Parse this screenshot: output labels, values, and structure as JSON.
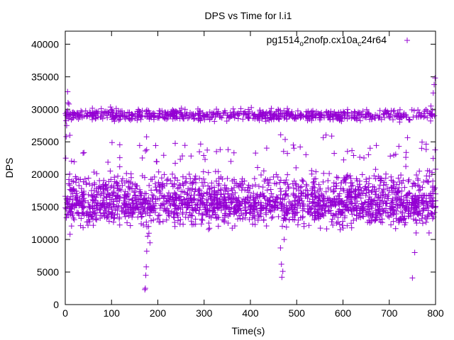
{
  "chart_data": {
    "type": "scatter",
    "title": "DPS vs Time for l.i1",
    "xlabel": "Time(s)",
    "ylabel": "DPS",
    "xlim": [
      0,
      800
    ],
    "ylim": [
      0,
      42000
    ],
    "x_ticks": [
      0,
      100,
      200,
      300,
      400,
      500,
      600,
      700,
      800
    ],
    "y_ticks": [
      0,
      5000,
      10000,
      15000,
      20000,
      25000,
      30000,
      35000,
      40000
    ],
    "legend": {
      "placement": "top-right",
      "label_parts": [
        "pg1514",
        "o",
        "2nofp.cx10a",
        "c",
        "24r64"
      ]
    },
    "series": [
      {
        "name": "pg1514_o2nofp.cx10a_c24r64",
        "color": "#9400D3",
        "marker": "+",
        "clusters": [
          {
            "time_range": [
              0,
              800
            ],
            "dps_center": 29100,
            "dps_spread": 700,
            "samples_per_second": 0.9
          },
          {
            "time_range": [
              0,
              800
            ],
            "dps_center": 15200,
            "dps_spread": 2400,
            "samples_per_second": 2.1
          },
          {
            "time_range": [
              0,
              800
            ],
            "dps_center": 18800,
            "dps_spread": 1400,
            "samples_per_second": 0.4
          },
          {
            "time_range": [
              0,
              800
            ],
            "dps_center": 23500,
            "dps_spread": 2000,
            "samples_per_second": 0.09
          }
        ],
        "points": [
          [
            1,
            22500
          ],
          [
            2,
            25800
          ],
          [
            3,
            27500
          ],
          [
            5,
            32700
          ],
          [
            6,
            31000
          ],
          [
            8,
            30800
          ],
          [
            10,
            26000
          ],
          [
            172,
            2300
          ],
          [
            173,
            2500
          ],
          [
            174,
            4500
          ],
          [
            175,
            5800
          ],
          [
            176,
            8200
          ],
          [
            178,
            10500
          ],
          [
            180,
            12000
          ],
          [
            183,
            9500
          ],
          [
            186,
            14500
          ],
          [
            465,
            8700
          ],
          [
            467,
            6200
          ],
          [
            468,
            4200
          ],
          [
            470,
            5100
          ],
          [
            473,
            10000
          ],
          [
            750,
            4100
          ],
          [
            755,
            8000
          ],
          [
            758,
            11000
          ],
          [
            765,
            20500
          ],
          [
            770,
            24000
          ],
          [
            786,
            11000
          ],
          [
            790,
            30500
          ],
          [
            793,
            29800
          ],
          [
            795,
            32500
          ],
          [
            797,
            33800
          ],
          [
            799,
            34800
          ],
          [
            800,
            17000
          ]
        ]
      }
    ]
  }
}
